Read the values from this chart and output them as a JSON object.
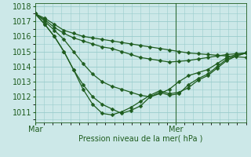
{
  "xlabel": "Pression niveau de la mer( hPa )",
  "ylim": [
    1010.3,
    1018.2
  ],
  "xlim": [
    0,
    72
  ],
  "yticks": [
    1011,
    1012,
    1013,
    1014,
    1015,
    1016,
    1017,
    1018
  ],
  "xtick_positions": [
    0,
    48
  ],
  "xtick_labels": [
    "Mar",
    "Mer"
  ],
  "background_color": "#cce8e8",
  "grid_color": "#99cccc",
  "line_color": "#1e5c1e",
  "vline_x": 48,
  "series": [
    [
      1017.5,
      1017.2,
      1016.8,
      1016.4,
      1016.2,
      1016.0,
      1015.9,
      1015.8,
      1015.7,
      1015.6,
      1015.5,
      1015.4,
      1015.3,
      1015.2,
      1015.1,
      1015.0,
      1014.9,
      1014.85,
      1014.8,
      1014.75,
      1014.7,
      1014.65,
      1014.6
    ],
    [
      1017.5,
      1017.1,
      1016.6,
      1016.2,
      1015.9,
      1015.7,
      1015.5,
      1015.3,
      1015.2,
      1015.0,
      1014.8,
      1014.6,
      1014.5,
      1014.4,
      1014.3,
      1014.35,
      1014.4,
      1014.5,
      1014.6,
      1014.7,
      1014.8,
      1014.85,
      1014.9
    ],
    [
      1017.5,
      1017.0,
      1016.4,
      1015.8,
      1015.0,
      1014.2,
      1013.5,
      1013.0,
      1012.7,
      1012.5,
      1012.3,
      1012.1,
      1012.0,
      1012.2,
      1012.5,
      1013.0,
      1013.4,
      1013.6,
      1013.8,
      1014.2,
      1014.6,
      1014.8,
      1014.9
    ],
    [
      1017.5,
      1016.8,
      1016.0,
      1015.0,
      1013.8,
      1012.8,
      1012.0,
      1011.5,
      1011.2,
      1010.9,
      1011.1,
      1011.4,
      1012.0,
      1012.3,
      1012.1,
      1012.2,
      1012.8,
      1013.2,
      1013.5,
      1014.0,
      1014.5,
      1014.7,
      1014.9
    ],
    [
      1017.5,
      1016.8,
      1016.0,
      1015.0,
      1013.8,
      1012.5,
      1011.5,
      1010.9,
      1010.8,
      1011.0,
      1011.3,
      1011.7,
      1012.1,
      1012.4,
      1012.2,
      1012.3,
      1012.6,
      1013.1,
      1013.4,
      1013.9,
      1014.4,
      1014.7,
      1014.9
    ]
  ],
  "series_x_count": 23,
  "marker_size": 2.5,
  "linewidth": 0.9,
  "fontsize_tick": 7,
  "fontsize_label": 7
}
